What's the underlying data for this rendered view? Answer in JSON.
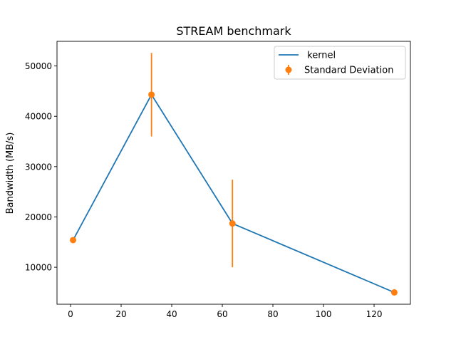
{
  "chart_data": {
    "type": "line",
    "title": "STREAM benchmark",
    "xlabel": "",
    "ylabel": "Bandwidth (MB/s)",
    "xlim": [
      -5.35,
      134.35
    ],
    "ylim": [
      2650,
      54900
    ],
    "xticks": [
      0,
      20,
      40,
      60,
      80,
      100,
      120
    ],
    "yticks": [
      10000,
      20000,
      30000,
      40000,
      50000
    ],
    "grid": false,
    "legend_position": "upper right",
    "series": [
      {
        "name": " kernel",
        "kind": "line",
        "color": "#1f77b4",
        "x": [
          1,
          32,
          64,
          128
        ],
        "y": [
          15400,
          44300,
          18700,
          5000
        ]
      },
      {
        "name": "Standard Deviation",
        "kind": "errorbar",
        "color": "#ff7f0e",
        "x": [
          1,
          32,
          64,
          128
        ],
        "y": [
          15400,
          44300,
          18700,
          5000
        ],
        "err": [
          300,
          8300,
          8700,
          100
        ]
      }
    ]
  }
}
